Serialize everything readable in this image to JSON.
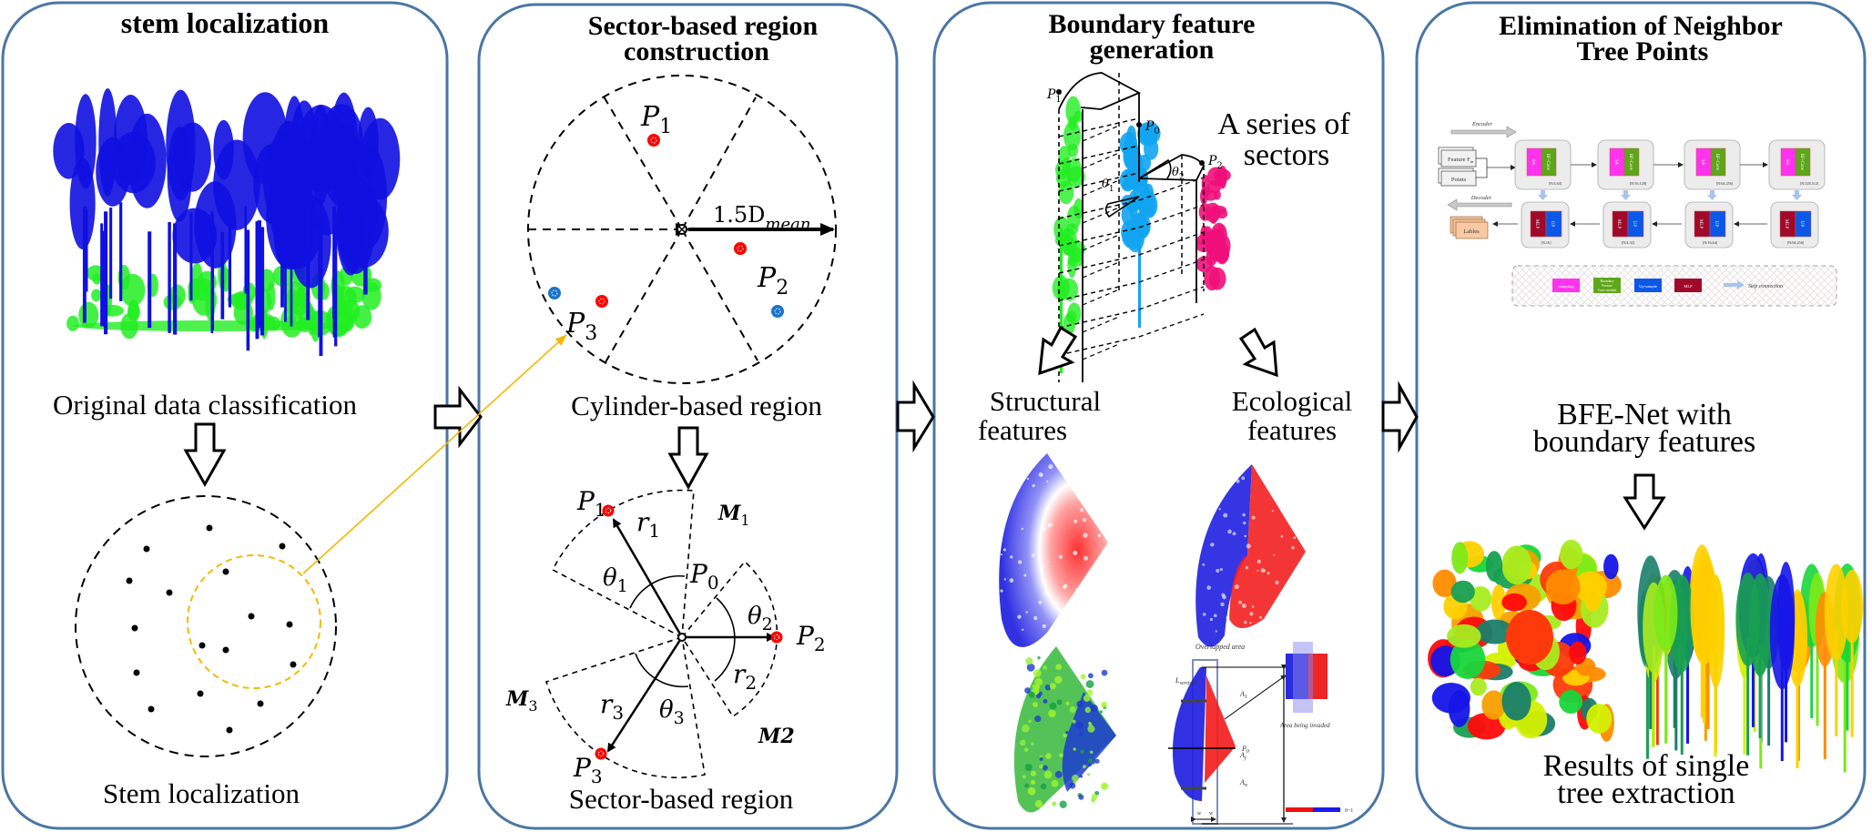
{
  "colors": {
    "panel_border": "#4a76a3",
    "stem_point": "#000000",
    "highlight": "#f5b800",
    "red_point": "#ff0000",
    "blue_point": "#1b74c8",
    "tree_blue": "#1010e0",
    "tree_green": "#22ee22",
    "tree_cyan": "#12a4f0",
    "tree_pink": "#f0107a",
    "sampling": "#ff33ee",
    "bf_conv": "#5ea61a",
    "upsample": "#0b57e8",
    "mlp": "#a00a2a"
  },
  "panels": [
    {
      "title": "stem localization",
      "caption_top": "Original data classification",
      "caption_bottom": "Stem localization"
    },
    {
      "title_line1": "Sector-based region",
      "title_line2": "construction",
      "top_diagram": {
        "p1": "P",
        "p1_sub": "1",
        "p2": "P",
        "p2_sub": "2",
        "p3": "P",
        "p3_sub": "3",
        "radius_label": "1.5D",
        "radius_sub": "mean"
      },
      "caption_mid": "Cylinder-based region",
      "bottom_diagram": {
        "p0": "P",
        "p0_sub": "0",
        "p1": "P",
        "p1_sub": "1",
        "p2": "P",
        "p2_sub": "2",
        "p3": "P",
        "p3_sub": "3",
        "r1": "r",
        "r1_sub": "1",
        "r2": "r",
        "r2_sub": "2",
        "r3": "r",
        "r3_sub": "3",
        "t1": "θ",
        "t1_sub": "1",
        "t2": "θ",
        "t2_sub": "2",
        "t3": "θ",
        "t3_sub": "3",
        "m1": "M",
        "m1_sub": "1",
        "m2": "M2",
        "m3": "M",
        "m3_sub": "3"
      },
      "caption_bottom": "Sector-based region"
    },
    {
      "title_line1": "Boundary feature",
      "title_line2": "generation",
      "cylinder": {
        "p1": "P",
        "p1_sub": "1",
        "p0": "P",
        "p0_sub": "0",
        "p2": "P",
        "p2_sub": "2",
        "t1": "θ",
        "t1_sub": "1",
        "t2": "θ",
        "t2_sub": "2"
      },
      "series_line1": "A series of",
      "series_line2": "sectors",
      "structural_line1": "Structural",
      "structural_line2": "features",
      "ecological_line1": "Ecological",
      "ecological_line2": "features",
      "eco_detail": {
        "overlapped": "Overlapped area",
        "lvertical": "L",
        "lvertical_sub": "vertical",
        "a1": "A",
        "a1_sub": "1",
        "aj": "A",
        "aj_sub": "j",
        "an": "A",
        "an_sub": "n",
        "p0": "P",
        "p0_sub": "0",
        "w": "w",
        "invaded": "Area being invaded",
        "scale": "0~1"
      }
    },
    {
      "title_line1": "Elimination of Neighbor",
      "title_line2": "Tree Points",
      "network": {
        "encoder": "Encoder",
        "decoder": "Decoder",
        "feature": "Feature F",
        "feature_sub": "in",
        "points": "Points",
        "labels": "Lables",
        "sa": "SA",
        "bfconv": "BF-Conv",
        "mlp": "MLP",
        "up": "UP",
        "enc_dims": [
          "[N/4,64]",
          "[N/16,128]",
          "[N/64,256]",
          "[N/128,512]"
        ],
        "dec_dims": [
          "[N,16]",
          "[N/4,32]",
          "[N/16,64]",
          "[N/64,256]"
        ],
        "legend": {
          "sampling": "Sampling",
          "bf_line1": "Boundary",
          "bf_line2": "Feature",
          "bf_line3": "Conv module",
          "upsample": "Up-sample",
          "mlp": "MLP",
          "skip": "Skip connection"
        }
      },
      "caption_mid_line1": "BFE-Net with",
      "caption_mid_line2": "boundary features",
      "caption_bottom_line1": "Results of single",
      "caption_bottom_line2": "tree extraction"
    }
  ]
}
